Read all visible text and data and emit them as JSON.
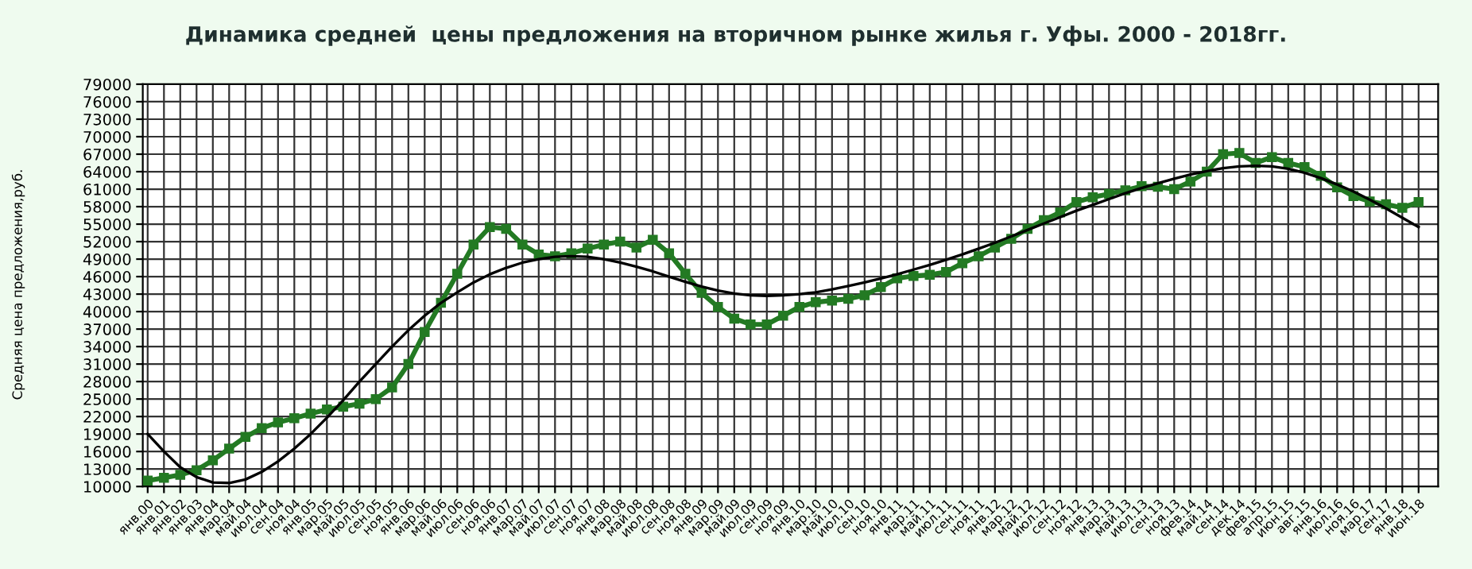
{
  "chart_data": {
    "type": "line",
    "title": "Динамика средней  цены предложения на вторичном рынке жилья г. Уфы. 2000 - 2018гг.",
    "ylabel": "Средняя цена предложения,руб.",
    "categories": [
      "янв.00",
      "янв.01",
      "янв.02",
      "янв.03",
      "янв.04",
      "мар.04",
      "май.04",
      "июл.04",
      "сен.04",
      "ноя.04",
      "янв.05",
      "мар.05",
      "май.05",
      "июл.05",
      "сен.05",
      "ноя.05",
      "янв.06",
      "мар.06",
      "май.06",
      "июл.06",
      "сен.06",
      "ноя.06",
      "янв.07",
      "мар.07",
      "май.07",
      "июл.07",
      "сен.07",
      "ноя.07",
      "янв.08",
      "мар.08",
      "май.08",
      "июл.08",
      "сен.08",
      "ноя.08",
      "янв.09",
      "мар.09",
      "май.09",
      "июл.09",
      "сен.09",
      "ноя.09",
      "янв.10",
      "мар.10",
      "май.10",
      "июл.10",
      "сен.10",
      "ноя.10",
      "янв.11",
      "мар.11",
      "май.11",
      "июл.11",
      "сен.11",
      "ноя.11",
      "янв.12",
      "мар.12",
      "май.12",
      "июл.12",
      "сен.12",
      "ноя.12",
      "янв.13",
      "мар.13",
      "май.13",
      "июл.13",
      "сен.13",
      "ноя.13",
      "фев.14",
      "май.14",
      "сен.14",
      "дек.14",
      "фев.15",
      "апр.15",
      "июн.15",
      "авг.15",
      "янв.16",
      "июл.16",
      "ноя.16",
      "мар.17",
      "сен.17",
      "янв.18",
      "июн.18"
    ],
    "series": [
      {
        "color": "#237a23",
        "marker": "square",
        "values": [
          11000,
          11500,
          12000,
          12800,
          14500,
          16500,
          18500,
          20000,
          21000,
          21700,
          22500,
          23200,
          23700,
          24200,
          25000,
          27000,
          31000,
          36500,
          41500,
          46500,
          51500,
          54500,
          54200,
          51500,
          49800,
          49500,
          50000,
          50800,
          51500,
          52000,
          51000,
          52300,
          50000,
          46500,
          43200,
          40800,
          38800,
          37800,
          37800,
          39300,
          40800,
          41600,
          41900,
          42200,
          42800,
          44200,
          45700,
          46100,
          46300,
          46800,
          48300,
          49500,
          51000,
          52500,
          54200,
          55700,
          57000,
          58800,
          59600,
          60200,
          60800,
          61500,
          61400,
          61000,
          62300,
          64000,
          67000,
          67200,
          65500,
          66500,
          65500,
          64800,
          63300,
          61300,
          59800,
          58900,
          58400,
          57800,
          58800
        ]
      },
      {
        "color": "#000000",
        "marker": "none",
        "values": [
          19000,
          16000,
          13300,
          11600,
          10700,
          10600,
          11200,
          12500,
          14300,
          16500,
          19000,
          21800,
          24800,
          28000,
          31000,
          34000,
          36800,
          39300,
          41500,
          43300,
          45000,
          46400,
          47500,
          48400,
          49000,
          49400,
          49500,
          49400,
          49000,
          48400,
          47700,
          46900,
          46000,
          45100,
          44300,
          43600,
          43100,
          42800,
          42700,
          42800,
          43000,
          43300,
          43800,
          44400,
          45000,
          45700,
          46400,
          47200,
          48000,
          48900,
          49800,
          50800,
          51800,
          52900,
          54000,
          55100,
          56200,
          57300,
          58300,
          59300,
          60300,
          61200,
          62000,
          62800,
          63500,
          64100,
          64600,
          64900,
          65000,
          64900,
          64500,
          63800,
          62900,
          61800,
          60600,
          59200,
          57700,
          56100,
          54500
        ]
      }
    ],
    "ylim": [
      10000,
      79000
    ],
    "yticks": [
      10000,
      13000,
      16000,
      19000,
      22000,
      25000,
      28000,
      31000,
      34000,
      37000,
      40000,
      43000,
      46000,
      49000,
      52000,
      55000,
      58000,
      61000,
      64000,
      67000,
      70000,
      73000,
      76000,
      79000
    ],
    "grid": true
  }
}
